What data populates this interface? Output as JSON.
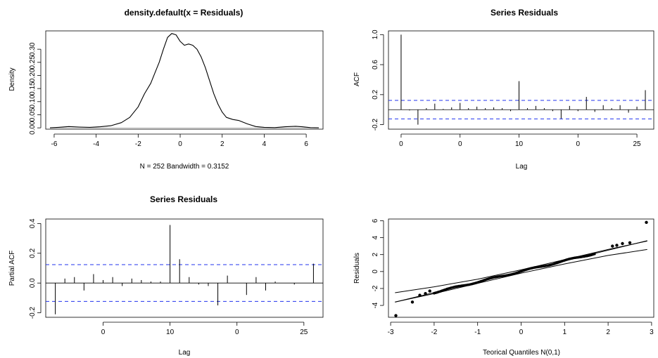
{
  "chart_data": [
    {
      "id": "density",
      "type": "line",
      "title": "density.default(x = Residuals)",
      "xlabel": "N = 252   Bandwidth = 0.3152",
      "ylabel": "Density",
      "xlim": [
        -6.4,
        6.8
      ],
      "ylim": [
        -0.005,
        0.37
      ],
      "xticks": [
        -6,
        -4,
        -2,
        0,
        2,
        4,
        6
      ],
      "yticks": [
        0.0,
        0.05,
        0.1,
        0.15,
        0.2,
        0.25,
        0.3
      ],
      "ytick_labels": [
        "0.00",
        "0.05",
        "0.10",
        "0.15",
        "0.20",
        "0.25",
        "0.30"
      ],
      "baseline": 0,
      "x": [
        -6.2,
        -5.8,
        -5.3,
        -4.8,
        -4.3,
        -3.8,
        -3.3,
        -2.8,
        -2.4,
        -2.0,
        -1.7,
        -1.4,
        -1.2,
        -1.0,
        -0.8,
        -0.6,
        -0.4,
        -0.2,
        0.0,
        0.2,
        0.4,
        0.6,
        0.8,
        1.0,
        1.2,
        1.4,
        1.6,
        1.8,
        2.0,
        2.2,
        2.5,
        2.8,
        3.2,
        3.6,
        4.0,
        4.5,
        5.0,
        5.5,
        5.8,
        6.2,
        6.6
      ],
      "y": [
        0.0,
        0.002,
        0.005,
        0.003,
        0.002,
        0.004,
        0.008,
        0.02,
        0.04,
        0.08,
        0.13,
        0.17,
        0.21,
        0.25,
        0.3,
        0.345,
        0.36,
        0.355,
        0.33,
        0.315,
        0.32,
        0.315,
        0.3,
        0.27,
        0.23,
        0.18,
        0.13,
        0.09,
        0.06,
        0.04,
        0.032,
        0.028,
        0.015,
        0.005,
        0.002,
        0.001,
        0.004,
        0.006,
        0.004,
        0.001,
        0.0
      ]
    },
    {
      "id": "acf",
      "type": "bar",
      "title": "Series  Residuals",
      "xlabel": "Lag",
      "ylabel": "ACF",
      "xlim": [
        -1.5,
        30
      ],
      "ylim": [
        -0.26,
        1.05
      ],
      "xticks": [
        0,
        7,
        14,
        21,
        28
      ],
      "xtick_labels": [
        "0",
        "0",
        "10",
        "0",
        "25"
      ],
      "yticks": [
        -0.2,
        0.2,
        0.6,
        1.0
      ],
      "ytick_labels": [
        "-0.2",
        "0.2",
        "0.6",
        "1.0"
      ],
      "conf_bound": 0.1235,
      "lags": [
        0,
        1,
        2,
        3,
        4,
        5,
        6,
        7,
        8,
        9,
        10,
        11,
        12,
        13,
        14,
        15,
        16,
        17,
        18,
        19,
        20,
        21,
        22,
        23,
        24,
        25,
        26,
        27,
        28,
        29
      ],
      "values": [
        1.0,
        -0.01,
        -0.2,
        0.02,
        0.08,
        0.01,
        0.03,
        0.09,
        0.02,
        0.04,
        0.02,
        0.03,
        0.02,
        -0.02,
        0.38,
        0.02,
        0.05,
        0.02,
        -0.02,
        -0.12,
        0.05,
        -0.02,
        0.17,
        -0.03,
        0.06,
        0.02,
        0.06,
        -0.04,
        0.04,
        0.26
      ]
    },
    {
      "id": "pacf",
      "type": "bar",
      "title": "Series  Residuals",
      "xlabel": "Lag",
      "ylabel": "Partial ACF",
      "xlim": [
        1,
        30
      ],
      "ylim": [
        -0.23,
        0.43
      ],
      "xticks": [
        7,
        14,
        21,
        28
      ],
      "xtick_labels": [
        "0",
        "10",
        "0",
        "25"
      ],
      "yticks": [
        -0.2,
        0.0,
        0.2,
        0.4
      ],
      "ytick_labels": [
        "-0.2",
        "0.0",
        "0.2",
        "0.4"
      ],
      "conf_bound": 0.1235,
      "lags": [
        2,
        3,
        4,
        5,
        6,
        7,
        8,
        9,
        10,
        11,
        12,
        13,
        14,
        15,
        16,
        17,
        18,
        19,
        20,
        21,
        22,
        23,
        24,
        25,
        26,
        27,
        28,
        29
      ],
      "values": [
        -0.21,
        0.03,
        0.04,
        -0.05,
        0.06,
        0.02,
        0.04,
        -0.02,
        0.03,
        0.02,
        0.01,
        0.01,
        0.39,
        0.16,
        0.04,
        -0.01,
        -0.02,
        -0.15,
        0.05,
        0.0,
        -0.08,
        0.04,
        -0.05,
        0.01,
        0.0,
        -0.01,
        0.0,
        0.13
      ]
    },
    {
      "id": "qq",
      "type": "scatter",
      "title": "",
      "xlabel": "Teorical Quantiles N(0,1)",
      "ylabel": "Residuals",
      "xlim": [
        -3.05,
        3.05
      ],
      "ylim": [
        -5.4,
        6.2
      ],
      "xticks": [
        -3,
        -2,
        -1,
        0,
        1,
        2,
        3
      ],
      "yticks": [
        -4,
        -2,
        0,
        2,
        4,
        6
      ],
      "ytick_labels": [
        "-4",
        "-2",
        "0",
        "2",
        "4",
        "6"
      ],
      "fit_line": {
        "intercept": 0.02,
        "slope": 1.25
      },
      "envelope_upper": {
        "x": [
          -2.9,
          -2.0,
          -1.0,
          0.0,
          1.0,
          2.0,
          2.9
        ],
        "y": [
          -2.5,
          -1.8,
          -0.9,
          0.2,
          1.4,
          2.6,
          3.6
        ]
      },
      "envelope_lower": {
        "x": [
          -2.9,
          -2.0,
          -1.0,
          0.0,
          1.0,
          2.0,
          2.9
        ],
        "y": [
          -3.6,
          -2.6,
          -1.4,
          -0.2,
          0.9,
          1.9,
          2.6
        ]
      },
      "extra_points": [
        {
          "x": -2.88,
          "y": -5.2
        },
        {
          "x": -2.5,
          "y": -3.6
        },
        {
          "x": -2.33,
          "y": -2.8
        },
        {
          "x": -2.2,
          "y": -2.6
        },
        {
          "x": -2.1,
          "y": -2.3
        },
        {
          "x": 2.1,
          "y": 3.0
        },
        {
          "x": 2.2,
          "y": 3.1
        },
        {
          "x": 2.33,
          "y": 3.3
        },
        {
          "x": 2.5,
          "y": 3.4
        },
        {
          "x": 2.88,
          "y": 5.8
        }
      ]
    }
  ]
}
